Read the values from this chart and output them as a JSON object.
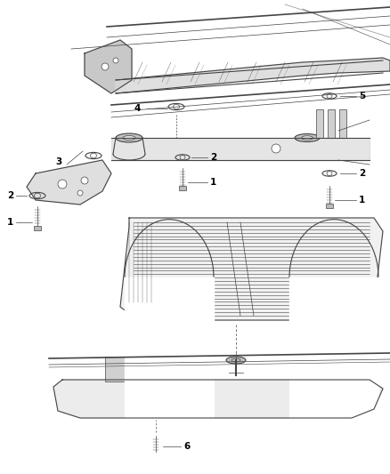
{
  "bg_color": "#ffffff",
  "line_color": "#444444",
  "label_color": "#000000",
  "figsize": [
    4.38,
    5.33
  ],
  "dpi": 100,
  "label_fs": 7.0
}
